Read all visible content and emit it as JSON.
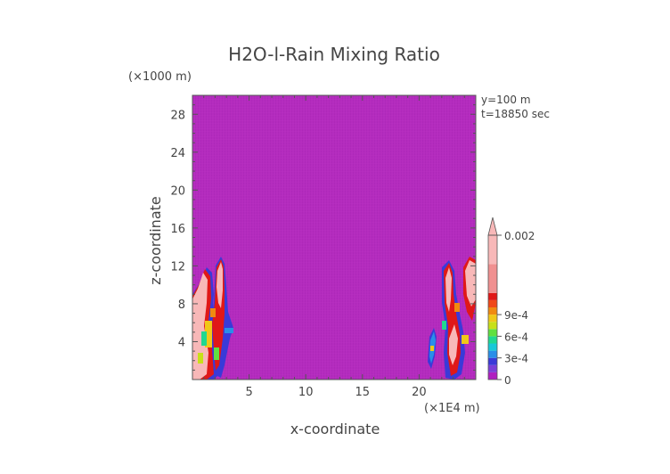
{
  "chart_data": {
    "type": "heatmap",
    "title": "H2O-l-Rain Mixing Ratio",
    "xlabel": "x-coordinate",
    "ylabel": "z-coordinate",
    "x_unit": "(×1E4 m)",
    "y_unit": "(×1000 m)",
    "xlim": [
      0,
      25
    ],
    "ylim": [
      0,
      30
    ],
    "x_ticks": [
      5,
      10,
      15,
      20
    ],
    "y_ticks": [
      4,
      8,
      12,
      16,
      20,
      24,
      28
    ],
    "annotations": [
      "y=100 m",
      "t=18850 sec"
    ],
    "background_value": 0,
    "colorbar": {
      "labels": [
        "0",
        "3e-4",
        "6e-4",
        "9e-4",
        "0.002"
      ],
      "label_values": [
        0,
        0.0003,
        0.0006,
        0.0009,
        0.002
      ],
      "colors": [
        "#b020c0",
        "#7a3fd8",
        "#3a3ad8",
        "#2a8ee8",
        "#18c8d8",
        "#20d890",
        "#60e040",
        "#c8e018",
        "#f0c818",
        "#f08a10",
        "#f04818",
        "#e01818",
        "#f09090",
        "#f8b8b8"
      ]
    },
    "features": [
      {
        "x": [
          0.1,
          1.6
        ],
        "z": [
          0.5,
          12.5
        ],
        "max_value": 0.002
      },
      {
        "x": [
          1.7,
          3.8
        ],
        "z": [
          0.5,
          13
        ],
        "max_value": 0.002
      },
      {
        "x": [
          20.8,
          21.3
        ],
        "z": [
          1.5,
          5.5
        ],
        "max_value": 0.0006
      },
      {
        "x": [
          22,
          24.8
        ],
        "z": [
          0.3,
          13
        ],
        "max_value": 0.002
      }
    ]
  }
}
